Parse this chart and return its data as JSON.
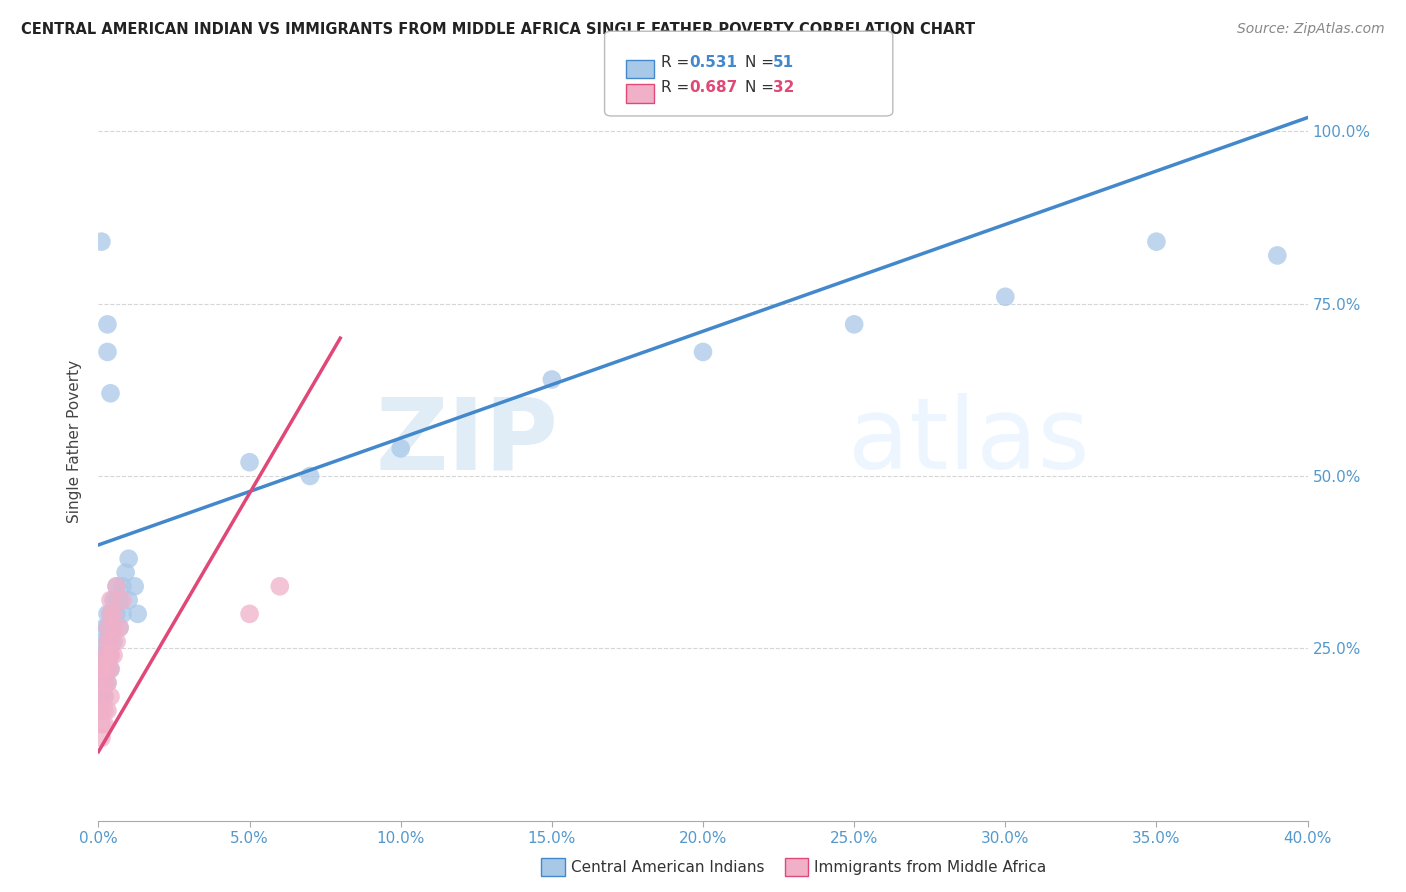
{
  "title": "CENTRAL AMERICAN INDIAN VS IMMIGRANTS FROM MIDDLE AFRICA SINGLE FATHER POVERTY CORRELATION CHART",
  "source": "Source: ZipAtlas.com",
  "ylabel": "Single Father Poverty",
  "legend_blue_label": "Central American Indians",
  "legend_pink_label": "Immigrants from Middle Africa",
  "blue_color": "#a8c8e8",
  "pink_color": "#f0b0c8",
  "blue_line_color": "#4488cc",
  "pink_line_color": "#e04878",
  "xmin": 0.0,
  "xmax": 0.4,
  "ymin": 0.0,
  "ymax": 1.1,
  "blue_line_x": [
    0.0,
    0.4
  ],
  "blue_line_y": [
    0.4,
    1.02
  ],
  "pink_line_x": [
    0.0,
    0.08
  ],
  "pink_line_y": [
    0.1,
    0.7
  ],
  "blue_dots": [
    [
      0.001,
      0.18
    ],
    [
      0.001,
      0.2
    ],
    [
      0.001,
      0.22
    ],
    [
      0.001,
      0.24
    ],
    [
      0.002,
      0.18
    ],
    [
      0.002,
      0.2
    ],
    [
      0.002,
      0.22
    ],
    [
      0.002,
      0.24
    ],
    [
      0.002,
      0.26
    ],
    [
      0.002,
      0.28
    ],
    [
      0.003,
      0.2
    ],
    [
      0.003,
      0.22
    ],
    [
      0.003,
      0.24
    ],
    [
      0.003,
      0.26
    ],
    [
      0.003,
      0.28
    ],
    [
      0.003,
      0.3
    ],
    [
      0.004,
      0.22
    ],
    [
      0.004,
      0.24
    ],
    [
      0.004,
      0.26
    ],
    [
      0.004,
      0.28
    ],
    [
      0.004,
      0.3
    ],
    [
      0.005,
      0.26
    ],
    [
      0.005,
      0.28
    ],
    [
      0.005,
      0.3
    ],
    [
      0.005,
      0.32
    ],
    [
      0.006,
      0.3
    ],
    [
      0.006,
      0.32
    ],
    [
      0.006,
      0.34
    ],
    [
      0.007,
      0.28
    ],
    [
      0.007,
      0.32
    ],
    [
      0.008,
      0.3
    ],
    [
      0.008,
      0.34
    ],
    [
      0.009,
      0.36
    ],
    [
      0.01,
      0.32
    ],
    [
      0.01,
      0.38
    ],
    [
      0.012,
      0.34
    ],
    [
      0.013,
      0.3
    ],
    [
      0.001,
      0.84
    ],
    [
      0.003,
      0.68
    ],
    [
      0.003,
      0.72
    ],
    [
      0.004,
      0.62
    ],
    [
      0.05,
      0.52
    ],
    [
      0.07,
      0.5
    ],
    [
      0.1,
      0.54
    ],
    [
      0.15,
      0.64
    ],
    [
      0.2,
      0.68
    ],
    [
      0.25,
      0.72
    ],
    [
      0.3,
      0.76
    ],
    [
      0.35,
      0.84
    ],
    [
      0.39,
      0.82
    ]
  ],
  "pink_dots": [
    [
      0.001,
      0.12
    ],
    [
      0.001,
      0.14
    ],
    [
      0.001,
      0.16
    ],
    [
      0.001,
      0.18
    ],
    [
      0.001,
      0.2
    ],
    [
      0.001,
      0.22
    ],
    [
      0.002,
      0.14
    ],
    [
      0.002,
      0.16
    ],
    [
      0.002,
      0.18
    ],
    [
      0.002,
      0.2
    ],
    [
      0.002,
      0.22
    ],
    [
      0.002,
      0.24
    ],
    [
      0.003,
      0.16
    ],
    [
      0.003,
      0.2
    ],
    [
      0.003,
      0.22
    ],
    [
      0.003,
      0.24
    ],
    [
      0.003,
      0.26
    ],
    [
      0.003,
      0.28
    ],
    [
      0.004,
      0.18
    ],
    [
      0.004,
      0.22
    ],
    [
      0.004,
      0.24
    ],
    [
      0.004,
      0.26
    ],
    [
      0.004,
      0.3
    ],
    [
      0.004,
      0.32
    ],
    [
      0.005,
      0.24
    ],
    [
      0.005,
      0.28
    ],
    [
      0.005,
      0.3
    ],
    [
      0.006,
      0.26
    ],
    [
      0.006,
      0.34
    ],
    [
      0.007,
      0.28
    ],
    [
      0.008,
      0.32
    ],
    [
      0.05,
      0.3
    ],
    [
      0.06,
      0.34
    ]
  ]
}
